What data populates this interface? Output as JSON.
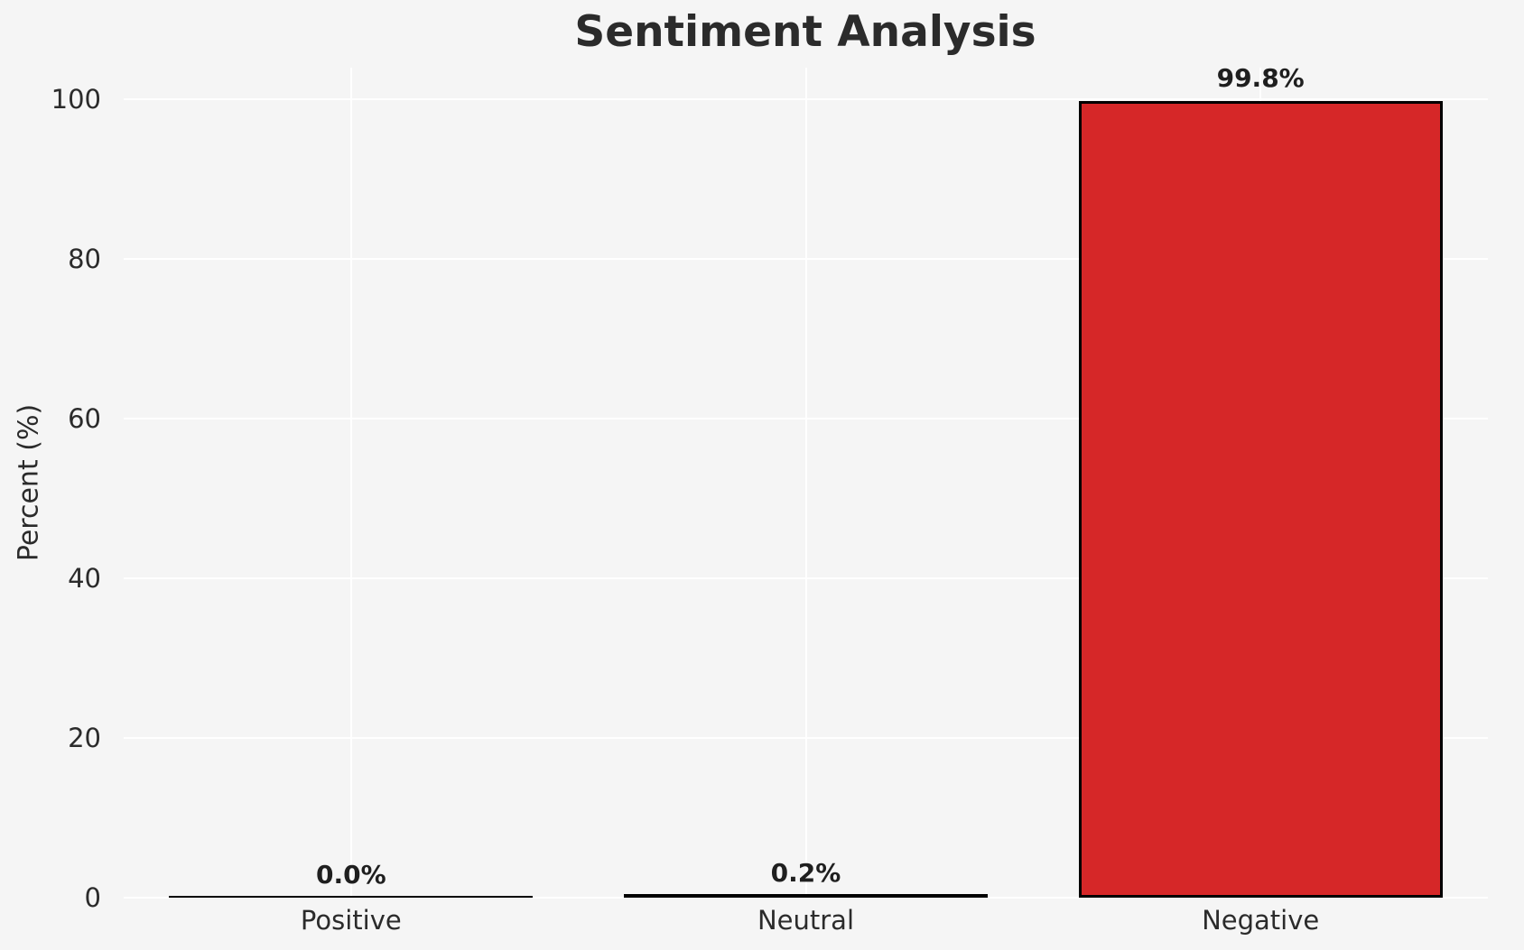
{
  "chart_data": {
    "type": "bar",
    "title": "Sentiment Analysis",
    "xlabel": "",
    "ylabel": "Percent (%)",
    "categories": [
      "Positive",
      "Neutral",
      "Negative"
    ],
    "values": [
      0.0,
      0.2,
      99.8
    ],
    "value_labels": [
      "0.0%",
      "0.2%",
      "99.8%"
    ],
    "yticks": [
      0,
      20,
      40,
      60,
      80,
      100
    ],
    "ylim": [
      0,
      104
    ],
    "xlim": [
      -0.5,
      2.5
    ],
    "bar_width_fraction": 0.8,
    "grid": true,
    "legend": "none",
    "colors": {
      "negative_bar_fill": "#d62728",
      "bar_edge": "#000000",
      "background": "#f5f5f5",
      "gridline": "#ffffff",
      "text": "#2b2b2b"
    }
  }
}
